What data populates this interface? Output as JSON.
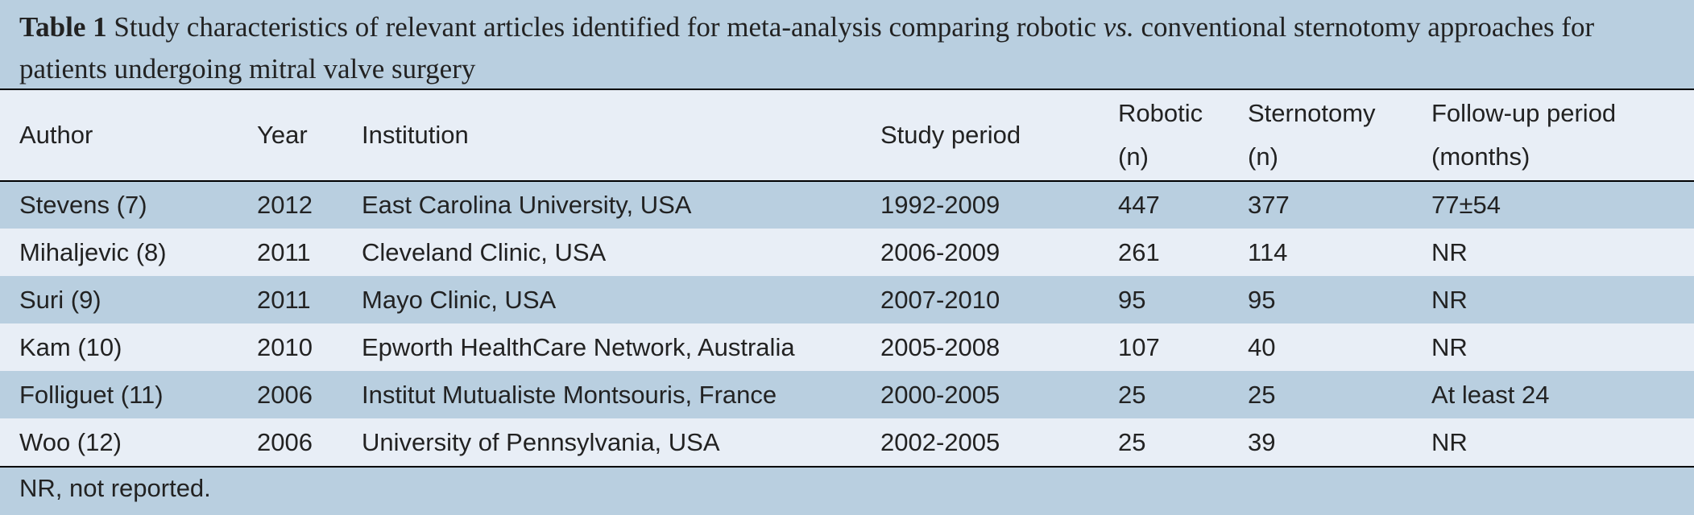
{
  "caption": {
    "label": "Table 1",
    "text_parts": [
      "Study characteristics of relevant articles identified for meta-analysis comparing robotic ",
      "vs.",
      " conventional sternotomy approaches for patients undergoing mitral valve surgery"
    ]
  },
  "table": {
    "header": [
      [
        "Author"
      ],
      [
        "Year"
      ],
      [
        "Institution"
      ],
      [
        "Study period"
      ],
      [
        "Robotic",
        "(n)"
      ],
      [
        "Sternotomy",
        "(n)"
      ],
      [
        "Follow-up period",
        "(months)"
      ]
    ],
    "rows": [
      [
        "Stevens (7)",
        "2012",
        "East Carolina University, USA",
        "1992-2009",
        "447",
        "377",
        "77±54"
      ],
      [
        "Mihaljevic (8)",
        "2011",
        "Cleveland Clinic, USA",
        "2006-2009",
        "261",
        "114",
        "NR"
      ],
      [
        "Suri (9)",
        "2011",
        "Mayo Clinic, USA",
        "2007-2010",
        "95",
        "95",
        "NR"
      ],
      [
        "Kam (10)",
        "2010",
        "Epworth HealthCare Network, Australia",
        "2005-2008",
        "107",
        "40",
        "NR"
      ],
      [
        "Folliguet (11)",
        "2006",
        "Institut Mutualiste Montsouris, France",
        "2000-2005",
        "25",
        "25",
        "At least 24"
      ],
      [
        "Woo (12)",
        "2006",
        "University of Pennsylvania, USA",
        "2002-2005",
        "25",
        "39",
        "NR"
      ]
    ]
  },
  "footnote": "NR, not reported."
}
